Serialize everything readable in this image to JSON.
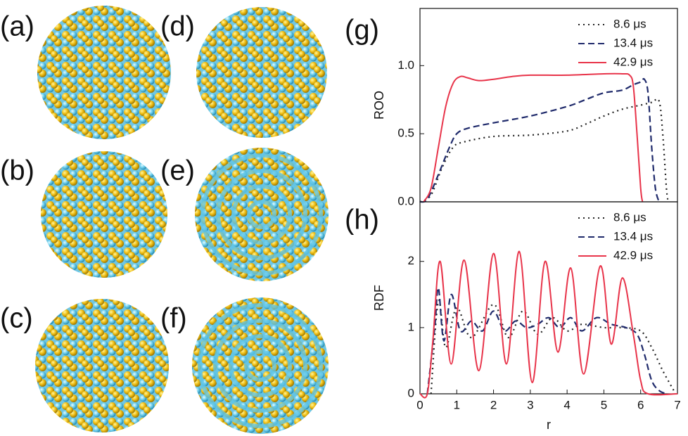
{
  "panels": [
    {
      "label": "(a)",
      "style": "mixed"
    },
    {
      "label": "(b)",
      "style": "mixed"
    },
    {
      "label": "(c)",
      "style": "mixed"
    },
    {
      "label": "(d)",
      "style": "mixed"
    },
    {
      "label": "(e)",
      "style": "rings"
    },
    {
      "label": "(f)",
      "style": "rings"
    }
  ],
  "chart_data": [
    {
      "type": "line",
      "label": "(g)",
      "ylabel": "ROO",
      "xlim": [
        0,
        7
      ],
      "ylim": [
        0,
        1.42
      ],
      "yticks": [
        {
          "value": 0,
          "label": "0.0"
        },
        {
          "value": 0.5,
          "label": "0.5"
        },
        {
          "value": 1,
          "label": "1.0"
        }
      ],
      "series": [
        {
          "name": "8.6 μs",
          "color": "#222222",
          "style": "dotted",
          "x": [
            0,
            0.3,
            0.6,
            0.9,
            1.2,
            2,
            3,
            4,
            4.5,
            5,
            5.5,
            6,
            6.3,
            6.5,
            6.6,
            6.7,
            6.75
          ],
          "values": [
            0,
            0.05,
            0.25,
            0.4,
            0.44,
            0.48,
            0.49,
            0.52,
            0.57,
            0.63,
            0.68,
            0.71,
            0.73,
            0.74,
            0.5,
            0.1,
            0
          ]
        },
        {
          "name": "13.4 μs",
          "color": "#1f2a6b",
          "style": "dashed",
          "x": [
            0,
            0.2,
            0.5,
            0.8,
            1,
            1.3,
            2,
            3,
            4,
            4.5,
            5,
            5.5,
            5.8,
            6,
            6.1,
            6.2,
            6.3,
            6.4,
            6.5
          ],
          "values": [
            0,
            0.02,
            0.2,
            0.4,
            0.5,
            0.54,
            0.58,
            0.63,
            0.7,
            0.75,
            0.8,
            0.82,
            0.86,
            0.88,
            0.9,
            0.8,
            0.4,
            0.1,
            0
          ]
        },
        {
          "name": "42.9 μs",
          "color": "#e8344a",
          "style": "solid",
          "x": [
            0.1,
            0.3,
            0.5,
            0.7,
            0.9,
            1.1,
            1.3,
            1.6,
            2,
            2.5,
            3,
            4,
            5,
            5.5,
            5.7,
            5.8,
            5.9,
            6,
            6.05
          ],
          "values": [
            0,
            0.1,
            0.4,
            0.7,
            0.87,
            0.92,
            0.91,
            0.89,
            0.9,
            0.92,
            0.93,
            0.93,
            0.94,
            0.94,
            0.93,
            0.85,
            0.5,
            0.1,
            0
          ]
        }
      ]
    },
    {
      "type": "line",
      "label": "(h)",
      "ylabel": "RDF",
      "xlabel": "r",
      "xlim": [
        0,
        7
      ],
      "xticks": [
        0,
        1,
        2,
        3,
        4,
        5,
        6,
        7
      ],
      "ylim": [
        0,
        2.9
      ],
      "yticks": [
        0,
        1,
        2
      ],
      "series": [
        {
          "name": "8.6 μs",
          "color": "#222222",
          "style": "dotted",
          "x": [
            0.3,
            0.5,
            0.7,
            1,
            1.4,
            2,
            2.4,
            2.8,
            3.2,
            3.6,
            4,
            4.4,
            5,
            5.5,
            6,
            6.3,
            6.6,
            6.9
          ],
          "values": [
            0,
            1.4,
            0.7,
            1.3,
            0.85,
            1.35,
            0.85,
            1.25,
            0.9,
            1.15,
            0.95,
            1.05,
            1,
            1,
            0.95,
            0.7,
            0.35,
            0.05
          ]
        },
        {
          "name": "13.4 μs",
          "color": "#1f2a6b",
          "style": "dashed",
          "x": [
            0.2,
            0.4,
            0.5,
            0.65,
            0.85,
            1.1,
            1.4,
            1.7,
            2,
            2.3,
            2.6,
            2.9,
            3.2,
            3.5,
            3.8,
            4.1,
            4.4,
            4.8,
            5.2,
            5.6,
            5.9,
            6.1,
            6.3,
            6.5,
            6.7
          ],
          "values": [
            0,
            1,
            1.6,
            0.8,
            1.5,
            0.95,
            1.1,
            0.95,
            1.25,
            0.95,
            1.1,
            1,
            1.05,
            1.15,
            1,
            1.15,
            0.95,
            1.15,
            1.05,
            1,
            0.9,
            0.6,
            0.2,
            0.05,
            0
          ]
        },
        {
          "name": "42.9 μs",
          "color": "#e8344a",
          "style": "solid",
          "x": [
            0,
            0.2,
            0.35,
            0.55,
            0.85,
            1.2,
            1.6,
            2,
            2.35,
            2.7,
            3.05,
            3.4,
            3.75,
            4.1,
            4.45,
            4.9,
            5.2,
            5.5,
            5.8,
            6,
            6.2,
            7
          ],
          "values": [
            0,
            0,
            0.8,
            2,
            0.45,
            2.02,
            0.35,
            2.12,
            0.45,
            2.15,
            0.17,
            2,
            0.63,
            1.9,
            0.3,
            1.93,
            0.75,
            1.75,
            0.9,
            0.2,
            0,
            0
          ]
        }
      ]
    }
  ]
}
